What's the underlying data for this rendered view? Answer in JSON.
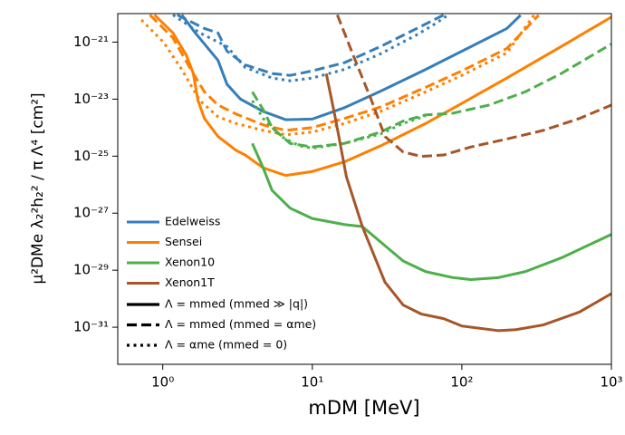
{
  "chart_data": {
    "type": "line",
    "xlabel": "mDM [MeV]",
    "ylabel": "μ²DMe λ₂²h₂² / π Λ⁴   [cm²]",
    "xscale": "log",
    "yscale": "log",
    "xlim": [
      0.5,
      1000
    ],
    "ylim": [
      5e-33,
      1e-20
    ],
    "xticks": [
      {
        "value": 1,
        "label": "10⁰"
      },
      {
        "value": 10,
        "label": "10¹"
      },
      {
        "value": 100,
        "label": "10²"
      },
      {
        "value": 1000,
        "label": "10³"
      }
    ],
    "yticks": [
      {
        "value": 1e-31,
        "label": "10⁻³¹"
      },
      {
        "value": 1e-29,
        "label": "10⁻²⁹"
      },
      {
        "value": 1e-27,
        "label": "10⁻²⁷"
      },
      {
        "value": 1e-25,
        "label": "10⁻²⁵"
      },
      {
        "value": 1e-23,
        "label": "10⁻²³"
      },
      {
        "value": 1e-21,
        "label": "10⁻²¹"
      }
    ],
    "legend": {
      "corner": "lower left",
      "experiments": [
        {
          "name": "Edelweiss",
          "color": "#377eb8"
        },
        {
          "name": "Sensei",
          "color": "#ff7f00"
        },
        {
          "name": "Xenon10",
          "color": "#4daf4a"
        },
        {
          "name": "Xenon1T",
          "color": "#a65628"
        }
      ],
      "styles": [
        {
          "name": "Λ = mmed (mmed ≫ |q|)",
          "dash": "solid"
        },
        {
          "name": "Λ = mmed (mmed = αme)",
          "dash": "dashed"
        },
        {
          "name": "Λ = αme   (mmed = 0)",
          "dash": "dotted"
        }
      ]
    },
    "series": [
      {
        "color": "#377eb8",
        "dash": "solid",
        "x": [
          1.34,
          1.65,
          2.34,
          2.69,
          3.31,
          4.69,
          6.64,
          10,
          16.4,
          28.6,
          57.3,
          100,
          200,
          247
        ],
        "values": [
          9e-21,
          2.1e-21,
          2.3e-22,
          3.3e-23,
          1e-23,
          3.7e-24,
          1.9e-24,
          2e-24,
          5e-24,
          1.9e-23,
          1.1e-22,
          4.8e-22,
          3e-21,
          8.8e-21
        ]
      },
      {
        "color": "#377eb8",
        "dash": "dashed",
        "x": [
          1.25,
          1.9,
          2.34,
          2.69,
          3.55,
          5.38,
          7.11,
          10,
          16.4,
          28.6,
          49.9,
          75.7
        ],
        "values": [
          9e-21,
          3e-21,
          2.1e-21,
          4.8e-22,
          1.6e-22,
          7.9e-23,
          6.8e-23,
          9.8e-23,
          1.9e-22,
          7e-22,
          3e-21,
          9e-21
        ]
      },
      {
        "color": "#377eb8",
        "dash": "dotted",
        "x": [
          1.17,
          1.77,
          2.69,
          3.55,
          5.38,
          7.11,
          10,
          16.4,
          28.6,
          49.9,
          65.9,
          81.1
        ],
        "values": [
          9e-21,
          2.1e-21,
          7e-22,
          1.3e-22,
          5.5e-23,
          4.4e-23,
          5.5e-23,
          1.1e-22,
          3.9e-22,
          1.8e-21,
          4.3e-21,
          9e-21
        ]
      },
      {
        "color": "#ff7f00",
        "dash": "solid",
        "x": [
          0.88,
          1.17,
          1.44,
          1.6,
          1.72,
          1.9,
          2.34,
          3.09,
          3.55,
          4.69,
          6.64,
          10,
          16.4,
          28.6,
          57.3,
          100,
          200,
          462,
          1000
        ],
        "values": [
          9e-21,
          2.1e-21,
          3.4e-22,
          7.9e-23,
          8.9e-24,
          2.1e-24,
          4.9e-25,
          1.6e-25,
          1.1e-25,
          3.9e-26,
          2.1e-26,
          2.9e-26,
          6.3e-26,
          2.3e-25,
          1.4e-24,
          7.1e-24,
          5.5e-23,
          7e-22,
          7.6e-21
        ]
      },
      {
        "color": "#ff7f00",
        "dash": "dashed",
        "x": [
          0.82,
          1.17,
          1.54,
          1.9,
          2.34,
          3.09,
          4.69,
          6.64,
          10,
          16.4,
          28.6,
          57.3,
          100,
          200,
          326
        ],
        "values": [
          9e-21,
          1.4e-21,
          1.1e-22,
          1.8e-23,
          6.2e-24,
          3e-24,
          1.25e-24,
          8e-25,
          1e-24,
          2.1e-24,
          5.3e-24,
          2.6e-23,
          9.8e-23,
          6e-22,
          8.8e-21
        ]
      },
      {
        "color": "#ff7f00",
        "dash": "dotted",
        "x": [
          0.72,
          1.01,
          1.34,
          1.77,
          2.34,
          3.09,
          4.69,
          6.64,
          10,
          16.4,
          28.6,
          57.3,
          100,
          200,
          304
        ],
        "values": [
          6e-21,
          1e-21,
          1.1e-22,
          8.9e-24,
          2.4e-24,
          1.4e-24,
          8e-25,
          5.6e-25,
          7e-25,
          1.4e-24,
          3.7e-24,
          1.8e-23,
          6.8e-23,
          4.2e-22,
          8.8e-21
        ]
      },
      {
        "color": "#4daf4a",
        "dash": "solid",
        "x": [
          3.97,
          4.69,
          5.38,
          7.11,
          10,
          16.4,
          21.6,
          28.6,
          40.5,
          57.3,
          87,
          115,
          175,
          265,
          462,
          1000
        ],
        "values": [
          2.8e-25,
          3.9e-26,
          6.3e-27,
          1.5e-27,
          6.5e-28,
          4e-28,
          3.4e-28,
          9.8e-29,
          2.1e-29,
          8.9e-30,
          5.5e-30,
          4.7e-30,
          5.5e-30,
          8.9e-30,
          2.7e-29,
          1.8e-28
        ]
      },
      {
        "color": "#4daf4a",
        "dash": "dashed",
        "x": [
          3.97,
          4.69,
          5.38,
          7.11,
          10,
          16.4,
          28.6,
          40.5,
          57.3,
          87,
          152,
          265,
          462,
          1000
        ],
        "values": [
          1.8e-23,
          4.3e-24,
          1e-24,
          2.8e-25,
          2.1e-25,
          2.8e-25,
          7e-25,
          1.7e-24,
          2.8e-24,
          3.2e-24,
          6.2e-24,
          1.8e-23,
          7.9e-23,
          8.6e-22
        ]
      },
      {
        "color": "#4daf4a",
        "dash": "dotted",
        "x": [
          3.97,
          4.69,
          6.19,
          8.17,
          10,
          16.4,
          28.6,
          40.5,
          57.3
        ],
        "values": [
          8.9e-24,
          2.1e-24,
          4.9e-25,
          2.3e-25,
          1.9e-25,
          2.8e-25,
          6e-25,
          1.4e-24,
          2.6e-24
        ]
      },
      {
        "color": "#a65628",
        "dash": "solid",
        "x": [
          12.4,
          14.3,
          16.9,
          21.6,
          30.6,
          40.5,
          53.5,
          75.7,
          100,
          175,
          230,
          350,
          611,
          1000
        ],
        "values": [
          7.9e-23,
          2e-24,
          1.9e-26,
          3.4e-28,
          3.8e-30,
          6e-31,
          2.9e-31,
          2e-31,
          1.1e-31,
          7.6e-32,
          8.2e-32,
          1.2e-31,
          3.4e-31,
          1.5e-30
        ]
      },
      {
        "color": "#a65628",
        "dash": "dashed",
        "x": [
          14.7,
          18.8,
          24.9,
          30.6,
          40.5,
          53.5,
          75.7,
          115,
          200,
          350,
          611,
          1000
        ],
        "values": [
          9e-21,
          3.4e-22,
          8.9e-24,
          4.9e-25,
          1.4e-25,
          9.8e-26,
          1.1e-25,
          2.1e-25,
          4e-25,
          8e-25,
          2.1e-24,
          6.2e-24
        ]
      }
    ]
  }
}
